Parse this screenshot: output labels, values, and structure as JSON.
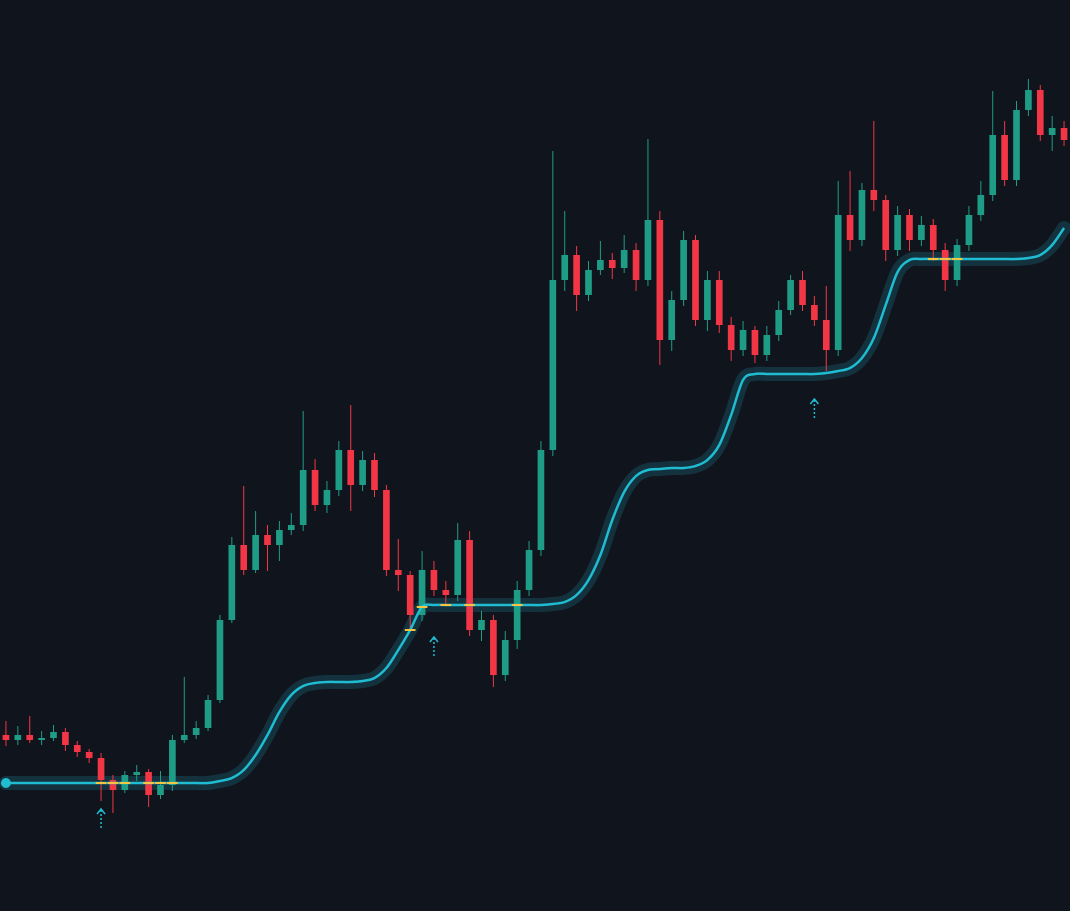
{
  "chart_data": {
    "type": "candlestick",
    "ylim": [
      0,
      911
    ],
    "up_color": "#1f9c86",
    "down_color": "#f23645",
    "background": "#10141d",
    "open": [
      176,
      171,
      176,
      171,
      173,
      179,
      166,
      159,
      153,
      131,
      121,
      136,
      139,
      116,
      126,
      171,
      176,
      183,
      211,
      291,
      366,
      341,
      376,
      366,
      381,
      386,
      441,
      406,
      421,
      461,
      426,
      451,
      421,
      341,
      336,
      296,
      341,
      321,
      316,
      371,
      281,
      291,
      236,
      271,
      321,
      361,
      461,
      631,
      656,
      616,
      641,
      651,
      643,
      661,
      631,
      691,
      571,
      611,
      671,
      591,
      631,
      586,
      561,
      581,
      556,
      576,
      601,
      631,
      606,
      591,
      561,
      696,
      671,
      721,
      711,
      661,
      696,
      671,
      686,
      661,
      631,
      666,
      696,
      716,
      776,
      731,
      801,
      821,
      776,
      783
    ],
    "high": [
      190,
      185,
      195,
      180,
      186,
      183,
      170,
      162,
      158,
      136,
      140,
      146,
      142,
      140,
      176,
      234,
      190,
      216,
      296,
      374,
      425,
      400,
      386,
      390,
      398,
      500,
      452,
      430,
      470,
      506,
      460,
      458,
      426,
      372,
      340,
      360,
      350,
      330,
      388,
      380,
      300,
      296,
      280,
      330,
      370,
      470,
      760,
      700,
      665,
      650,
      670,
      658,
      676,
      668,
      772,
      700,
      620,
      680,
      676,
      640,
      640,
      594,
      590,
      585,
      585,
      610,
      636,
      640,
      615,
      625,
      730,
      740,
      728,
      790,
      716,
      705,
      702,
      695,
      692,
      668,
      672,
      705,
      730,
      820,
      790,
      810,
      832,
      826,
      795,
      790
    ],
    "low": [
      165,
      166,
      168,
      166,
      170,
      160,
      154,
      148,
      110,
      98,
      118,
      130,
      104,
      112,
      120,
      168,
      172,
      180,
      208,
      288,
      336,
      338,
      340,
      350,
      376,
      380,
      400,
      398,
      415,
      400,
      420,
      414,
      335,
      320,
      280,
      290,
      315,
      305,
      310,
      275,
      270,
      224,
      230,
      262,
      315,
      355,
      455,
      620,
      600,
      610,
      636,
      632,
      638,
      620,
      625,
      546,
      560,
      605,
      585,
      580,
      578,
      550,
      555,
      548,
      550,
      570,
      596,
      600,
      585,
      540,
      555,
      660,
      665,
      700,
      650,
      655,
      660,
      665,
      650,
      620,
      625,
      660,
      690,
      710,
      725,
      725,
      795,
      770,
      760,
      765
    ],
    "close": [
      171,
      176,
      171,
      173,
      179,
      166,
      159,
      153,
      131,
      121,
      136,
      139,
      116,
      126,
      171,
      176,
      183,
      211,
      291,
      366,
      341,
      376,
      366,
      381,
      386,
      441,
      406,
      421,
      461,
      426,
      451,
      421,
      341,
      336,
      296,
      341,
      321,
      316,
      371,
      281,
      291,
      236,
      271,
      321,
      361,
      461,
      631,
      656,
      616,
      641,
      651,
      643,
      661,
      631,
      691,
      571,
      611,
      671,
      591,
      631,
      586,
      561,
      581,
      556,
      576,
      601,
      631,
      606,
      591,
      561,
      696,
      671,
      721,
      711,
      661,
      696,
      671,
      686,
      661,
      631,
      666,
      696,
      716,
      776,
      731,
      801,
      821,
      776,
      783,
      771
    ],
    "trail": {
      "color": "#1fbcd2",
      "cross_color": "#f5c542",
      "values": [
        128,
        128,
        128,
        128,
        128,
        128,
        128,
        128,
        128,
        128,
        128,
        128,
        128,
        128,
        128,
        128,
        128,
        128,
        130,
        133,
        141,
        156,
        176,
        199,
        216,
        225,
        228,
        229,
        229,
        229,
        230,
        233,
        243,
        261,
        281,
        304,
        306,
        306,
        306,
        306,
        306,
        306,
        306,
        306,
        306,
        306,
        307,
        309,
        316,
        331,
        356,
        391,
        419,
        435,
        441,
        442,
        443,
        443,
        445,
        451,
        466,
        496,
        531,
        537,
        537,
        537,
        537,
        537,
        537,
        538,
        540,
        543,
        553,
        573,
        606,
        639,
        651,
        652,
        652,
        652,
        652,
        652,
        652,
        652,
        652,
        652,
        653,
        656,
        666,
        683
      ]
    },
    "signals": {
      "color": "#1fbcd2",
      "values": [
        null,
        null,
        null,
        null,
        null,
        null,
        null,
        null,
        91,
        null,
        null,
        null,
        null,
        null,
        null,
        null,
        null,
        null,
        null,
        null,
        null,
        null,
        null,
        null,
        null,
        null,
        null,
        null,
        null,
        null,
        null,
        null,
        null,
        null,
        null,
        null,
        263,
        null,
        null,
        null,
        null,
        null,
        null,
        null,
        null,
        null,
        null,
        null,
        null,
        null,
        null,
        null,
        null,
        null,
        null,
        null,
        null,
        null,
        null,
        null,
        null,
        null,
        null,
        null,
        null,
        null,
        null,
        null,
        501,
        null,
        null,
        null,
        null,
        null,
        null,
        null,
        null,
        null,
        null,
        null,
        null,
        null,
        null,
        null,
        null,
        null,
        null,
        null,
        null,
        null
      ]
    }
  }
}
